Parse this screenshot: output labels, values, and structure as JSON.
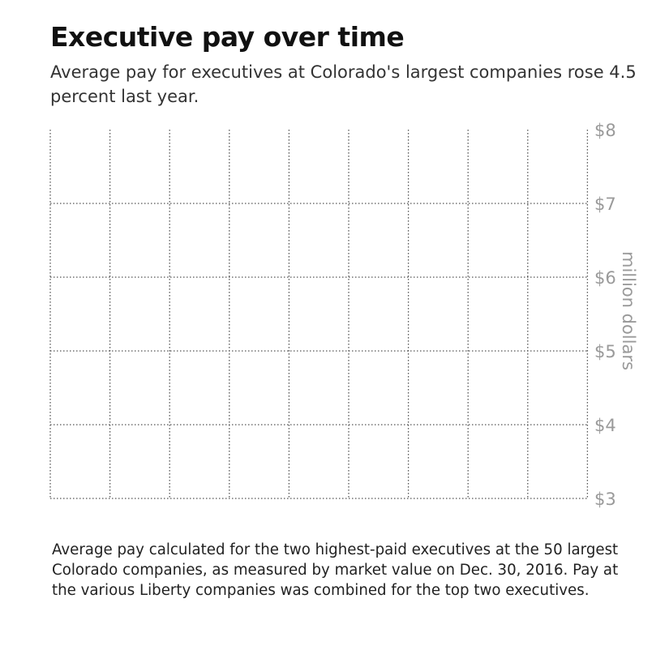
{
  "header": {
    "title": "Executive pay over time",
    "subtitle": "Average pay for executives at Colorado's largest companies rose 4.5 percent last year."
  },
  "chart_data": {
    "type": "line",
    "title": "Executive pay over time",
    "subtitle": "Average pay for executives at Colorado's largest companies rose 4.5 percent last year.",
    "xlabel": "",
    "ylabel": "million dollars",
    "ylim": [
      3,
      8
    ],
    "y_ticks": [
      {
        "value": 8,
        "label": "$8"
      },
      {
        "value": 7,
        "label": "$7"
      },
      {
        "value": 6,
        "label": "$6"
      },
      {
        "value": 5,
        "label": "$5"
      },
      {
        "value": 4,
        "label": "$4"
      },
      {
        "value": 3,
        "label": "$3"
      }
    ],
    "x_gridline_count": 10,
    "grid": true,
    "grid_style": "dotted",
    "series": []
  },
  "footer": {
    "note": "Average pay calculated for the two highest-paid executives at the 50 largest Colorado companies, as measured by market value on Dec. 30, 2016. Pay at the various Liberty companies was combined for the top two executives."
  },
  "colors": {
    "gridline": "#555555",
    "tick_label": "#9a9a9a",
    "title": "#111111"
  }
}
